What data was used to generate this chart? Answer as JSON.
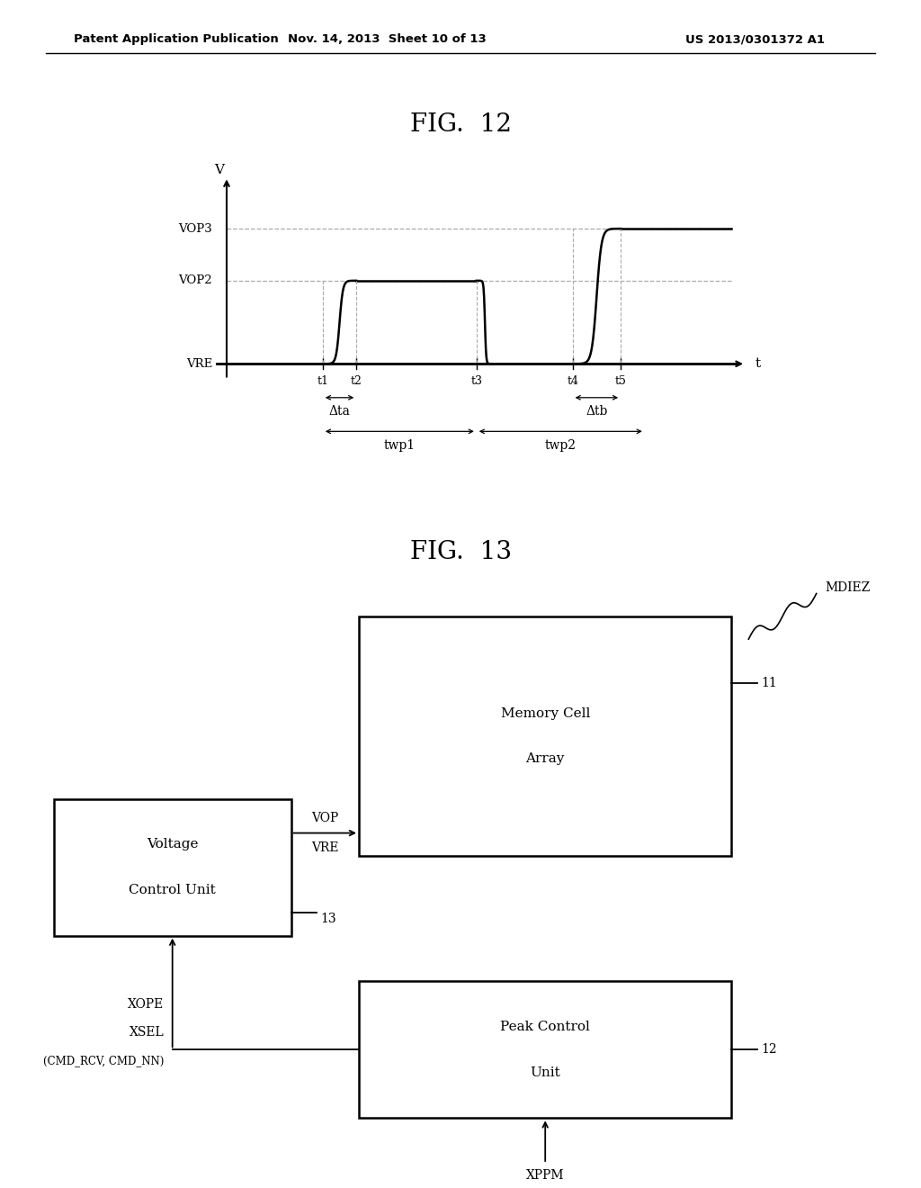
{
  "header_left": "Patent Application Publication",
  "header_mid": "Nov. 14, 2013  Sheet 10 of 13",
  "header_right": "US 2013/0301372 A1",
  "fig12_title": "FIG.  12",
  "fig13_title": "FIG.  13",
  "bg_color": "#ffffff",
  "line_color": "#000000",
  "dashed_color": "#aaaaaa"
}
